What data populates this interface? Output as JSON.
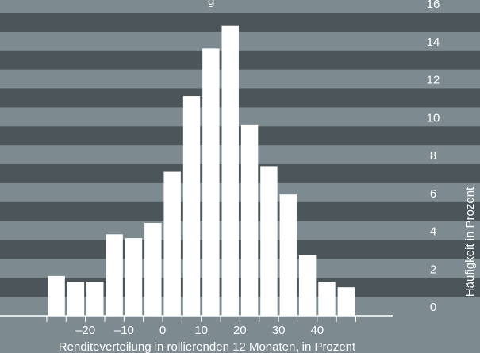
{
  "chart_data": {
    "type": "bar",
    "title_fragment": "g",
    "x": [
      -27.5,
      -22.5,
      -17.5,
      -12.5,
      -7.5,
      -2.5,
      2.5,
      7.5,
      12.5,
      17.5,
      22.5,
      27.5,
      32.5,
      37.5,
      42.5,
      47.5
    ],
    "values": [
      2.1,
      1.8,
      1.8,
      4.3,
      4.1,
      4.9,
      7.6,
      11.6,
      14.1,
      15.3,
      10.1,
      7.9,
      6.4,
      3.2,
      1.8,
      1.5
    ],
    "bin_width": 5,
    "xlabel": "Renditeverteilung in rollierenden 12 Monaten, in Prozent",
    "ylabel": "Häufigkeit in Prozent",
    "xlim": [
      -30,
      55
    ],
    "ylim": [
      0,
      16
    ],
    "x_ticks": [
      -20,
      -10,
      0,
      10,
      20,
      30,
      40
    ],
    "x_tick_labels": [
      "–20",
      "–10",
      "0",
      "10",
      "20",
      "30",
      "40"
    ],
    "y_ticks": [
      0,
      2,
      4,
      6,
      8,
      10,
      12,
      14,
      16
    ],
    "y_tick_labels": [
      "0",
      "2",
      "4",
      "6",
      "8",
      "10",
      "12",
      "14",
      "16"
    ],
    "y_axis_position": "right",
    "grid": "alternating horizontal bands",
    "colors": {
      "band_light": "#7d8b91",
      "band_dark": "#4b555a",
      "bar": "#ffffff",
      "axis": "#ffffff",
      "text": "#ffffff"
    }
  }
}
